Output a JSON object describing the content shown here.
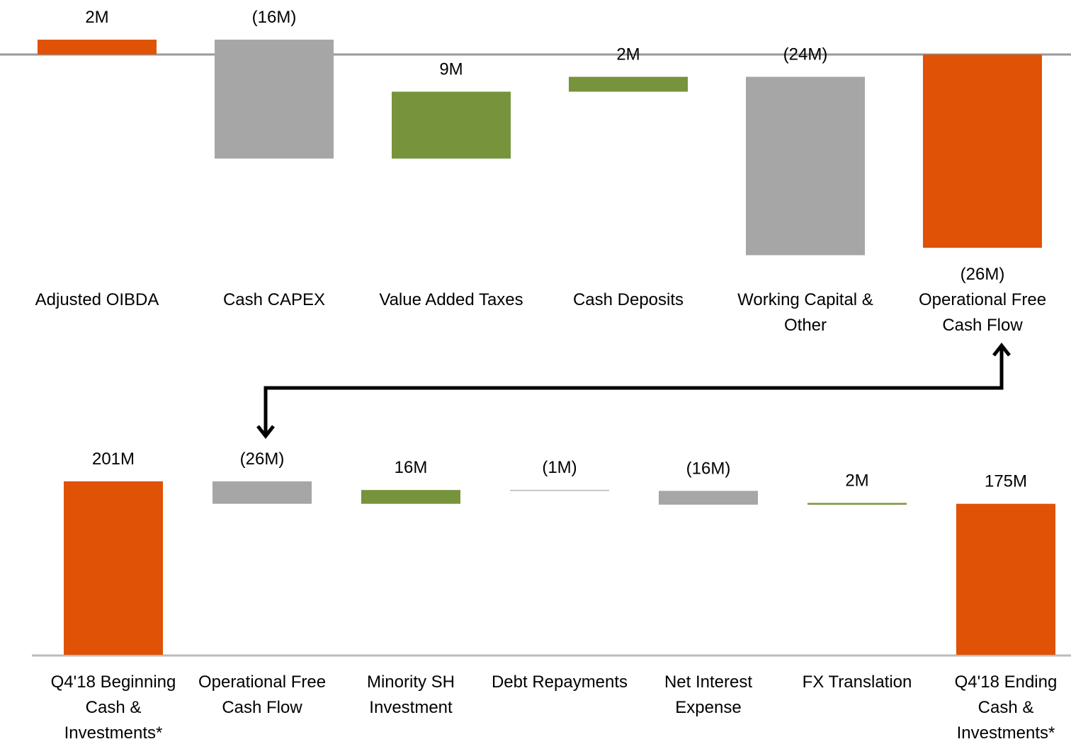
{
  "chart_data": [
    {
      "type": "waterfall",
      "categories": [
        "Adjusted OIBDA",
        "Cash CAPEX",
        "Value Added Taxes",
        "Cash Deposits",
        "Working Capital & Other",
        "Operational Free Cash Flow"
      ],
      "values": [
        2,
        -16,
        9,
        2,
        -24,
        -26
      ],
      "value_labels": [
        "2M",
        "(16M)",
        "9M",
        "2M",
        "(24M)",
        "(26M)"
      ],
      "measure": [
        "relative",
        "relative",
        "relative",
        "relative",
        "relative",
        "total"
      ],
      "colors": [
        "#e05206",
        "#a6a6a6",
        "#77933c",
        "#77933c",
        "#a6a6a6",
        "#e05206"
      ],
      "ylim": [
        -26,
        2
      ]
    },
    {
      "type": "waterfall",
      "categories": [
        "Q4'18 Beginning Cash & Investments*",
        "Operational Free Cash Flow",
        "Minority SH Investment",
        "Debt Repayments",
        "Net Interest Expense",
        "FX Translation",
        "Q4'18 Ending Cash & Investments*"
      ],
      "values": [
        201,
        -26,
        16,
        -1,
        -16,
        2,
        175
      ],
      "value_labels": [
        "201M",
        "(26M)",
        "16M",
        "(1M)",
        "(16M)",
        "2M",
        "175M"
      ],
      "measure": [
        "total",
        "relative",
        "relative",
        "relative",
        "relative",
        "relative",
        "total"
      ],
      "colors": [
        "#e05206",
        "#a6a6a6",
        "#77933c",
        "#a6a6a6",
        "#a6a6a6",
        "#77933c",
        "#e05206"
      ],
      "ylim": [
        0,
        201
      ]
    }
  ]
}
